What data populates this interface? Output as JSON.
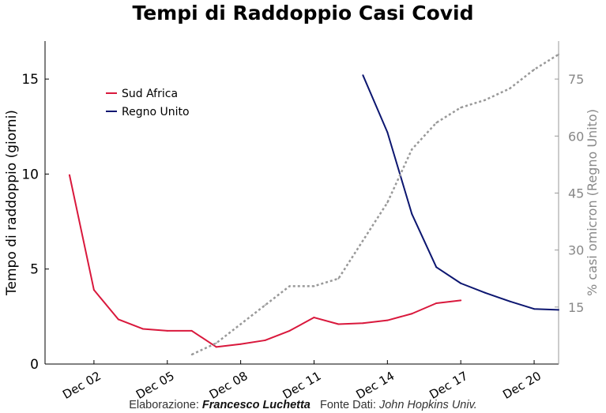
{
  "chart_data": {
    "type": "line",
    "title": "Tempi di Raddoppio Casi Covid",
    "ylabel_left": "Tempo di raddoppio (giorni)",
    "ylabel_right": "% casi omicron (Regno Unito)",
    "xlabel": "",
    "x_tick_labels": [
      "Dec 02",
      "Dec 05",
      "Dec 08",
      "Dec 11",
      "Dec 14",
      "Dec 17",
      "Dec 20"
    ],
    "x_tick_days": [
      2,
      5,
      8,
      11,
      14,
      17,
      20
    ],
    "xlim": [
      0,
      21
    ],
    "ylim_left": [
      0,
      17
    ],
    "y_left_ticks": [
      0,
      5,
      10,
      15
    ],
    "ylim_right": [
      0,
      85
    ],
    "y_right_ticks": [
      15,
      30,
      45,
      60,
      75
    ],
    "legend_position": "top-left",
    "series": [
      {
        "name": "Sud Africa",
        "axis": "left",
        "style": "solid",
        "color": "#d9183c",
        "x": [
          1,
          2,
          3,
          4,
          5,
          6,
          7,
          8,
          9,
          10,
          11,
          12,
          13,
          14,
          15,
          16,
          17
        ],
        "y": [
          9.95,
          3.9,
          2.35,
          1.85,
          1.75,
          1.75,
          0.9,
          1.05,
          1.25,
          1.75,
          2.45,
          2.1,
          2.15,
          2.3,
          2.65,
          3.2,
          3.35
        ]
      },
      {
        "name": "Regno Unito",
        "axis": "left",
        "style": "solid",
        "color": "#0c1670",
        "x": [
          13,
          14,
          15,
          16,
          17,
          18,
          19,
          20,
          21
        ],
        "y": [
          15.2,
          12.2,
          7.9,
          5.1,
          4.25,
          3.75,
          3.3,
          2.9,
          2.85
        ]
      },
      {
        "name": "",
        "axis": "right",
        "style": "dotted",
        "color": "#999999",
        "x": [
          6,
          7,
          8,
          9,
          10,
          11,
          12,
          13,
          14,
          15,
          16,
          17,
          18,
          19,
          20,
          21
        ],
        "y": [
          2.5,
          5.5,
          10.5,
          15.5,
          20.5,
          20.5,
          22.5,
          32.5,
          42.5,
          56.5,
          63.5,
          67.5,
          69.5,
          72.5,
          77.5,
          81.5
        ]
      }
    ]
  },
  "footer": {
    "elaborazione_label": "Elaborazione:",
    "author": "Francesco Luchetta",
    "fonte_label": "Fonte Dati:",
    "source_name": "John Hopkins Univ."
  }
}
